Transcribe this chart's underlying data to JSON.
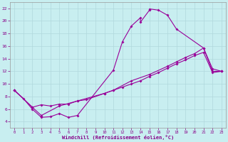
{
  "xlabel": "Windchill (Refroidissement éolien,°C)",
  "bg_color": "#c8eef0",
  "grid_color": "#b0d8dc",
  "line_color": "#990099",
  "xlim": [
    -0.5,
    23.5
  ],
  "ylim": [
    3,
    23
  ],
  "xticks": [
    0,
    1,
    2,
    3,
    4,
    5,
    6,
    7,
    8,
    9,
    10,
    11,
    12,
    13,
    14,
    15,
    16,
    17,
    18,
    19,
    20,
    21,
    22,
    23
  ],
  "yticks": [
    4,
    6,
    8,
    10,
    12,
    14,
    16,
    18,
    20,
    22
  ],
  "line1_x": [
    0,
    1,
    2,
    3,
    4,
    5,
    6,
    7,
    11,
    12,
    13,
    14,
    14,
    15,
    15,
    16,
    17,
    18,
    21,
    22,
    23
  ],
  "line1_y": [
    9,
    7.7,
    6.0,
    4.7,
    4.8,
    5.3,
    4.7,
    5.0,
    12.2,
    16.7,
    19.2,
    20.5,
    19.8,
    21.7,
    21.9,
    21.7,
    20.9,
    18.7,
    15.7,
    12.4,
    12.0
  ],
  "line2_x": [
    0,
    2,
    3,
    4,
    5,
    6,
    7,
    8,
    10,
    11,
    12,
    13,
    14,
    15,
    16,
    17,
    18,
    19,
    20,
    21,
    22,
    23
  ],
  "line2_y": [
    9.0,
    6.3,
    6.7,
    6.5,
    6.8,
    6.8,
    7.3,
    7.5,
    8.5,
    9.0,
    9.5,
    10.0,
    10.5,
    11.2,
    11.8,
    12.5,
    13.2,
    13.8,
    14.5,
    15.0,
    11.8,
    12.0
  ],
  "line3_x": [
    0,
    2,
    3,
    5,
    7,
    10,
    11,
    13,
    15,
    17,
    18,
    19,
    20,
    21,
    22,
    23
  ],
  "line3_y": [
    9.0,
    6.3,
    5.0,
    6.5,
    7.3,
    8.5,
    9.0,
    10.5,
    11.5,
    12.8,
    13.5,
    14.2,
    14.8,
    15.7,
    12.0,
    12.0
  ]
}
